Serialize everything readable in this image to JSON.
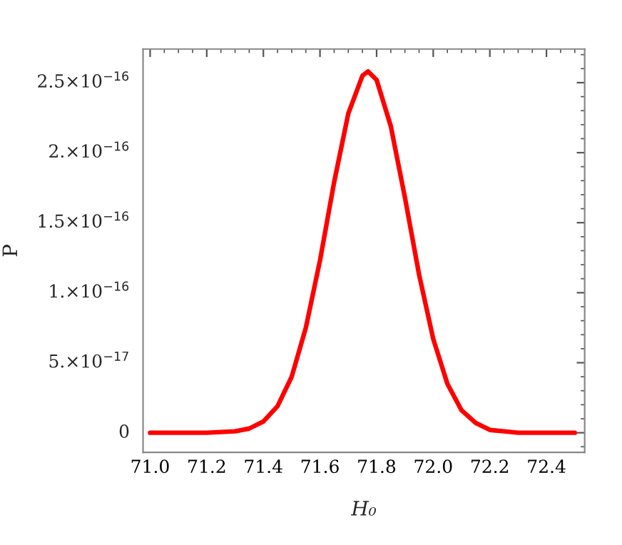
{
  "chart_data": {
    "type": "line",
    "xlabel": "H₀",
    "ylabel": "P",
    "x": [
      71.0,
      71.2,
      71.3,
      71.35,
      71.4,
      71.45,
      71.5,
      71.55,
      71.6,
      71.65,
      71.7,
      71.75,
      71.77,
      71.8,
      71.85,
      71.9,
      71.95,
      72.0,
      72.05,
      72.1,
      72.15,
      72.2,
      72.25,
      72.3,
      72.4,
      72.5
    ],
    "series": [
      {
        "color": "#ff0000",
        "values": [
          0,
          0,
          1e-18,
          3e-18,
          8e-18,
          1.9e-17,
          4e-17,
          7.5e-17,
          1.23e-16,
          1.79e-16,
          2.28e-16,
          2.55e-16,
          2.58e-16,
          2.52e-16,
          2.19e-16,
          1.68e-16,
          1.13e-16,
          6.7e-17,
          3.5e-17,
          1.6e-17,
          7e-18,
          2e-18,
          1e-18,
          0,
          0,
          0
        ]
      }
    ],
    "xlim": [
      70.975,
      72.535
    ],
    "ylim": [
      -1.4e-17,
      2.74e-16
    ],
    "xticks": [
      {
        "value": 71.0,
        "label": "71.0"
      },
      {
        "value": 71.2,
        "label": "71.2"
      },
      {
        "value": 71.4,
        "label": "71.4"
      },
      {
        "value": 71.6,
        "label": "71.6"
      },
      {
        "value": 71.8,
        "label": "71.8"
      },
      {
        "value": 72.0,
        "label": "72.0"
      },
      {
        "value": 72.2,
        "label": "72.2"
      },
      {
        "value": 72.4,
        "label": "72.4"
      }
    ],
    "yticks": [
      {
        "value": 0,
        "label": "0"
      },
      {
        "value": 5e-17,
        "label": "5.×10$^{−17}$"
      },
      {
        "value": 1e-16,
        "label": "1.×10$^{−16}$"
      },
      {
        "value": 1.5e-16,
        "label": "1.5×10$^{−16}$"
      },
      {
        "value": 2e-16,
        "label": "2.×10$^{−16}$"
      },
      {
        "value": 2.5e-16,
        "label": "2.5×10$^{−16}$"
      }
    ],
    "grid": false,
    "legend": false,
    "marker": "none",
    "line_style": "solid"
  }
}
